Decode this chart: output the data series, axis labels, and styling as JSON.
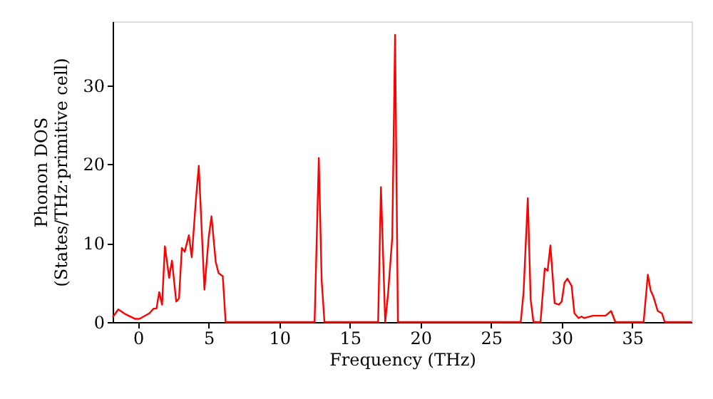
{
  "chart_data": {
    "type": "line",
    "xlabel": "Frequency (THz)",
    "ylabel": "Phonon DOS\n(States/THz·primitive cell)",
    "xlim": [
      -1.8,
      39.2
    ],
    "ylim": [
      0,
      38.1
    ],
    "xticks": [
      0,
      5,
      10,
      15,
      20,
      25,
      30,
      35
    ],
    "yticks": [
      0,
      10,
      20,
      30
    ],
    "grid": false,
    "marker": "none",
    "line_style": "solid",
    "series": [
      {
        "color": "#ff0000",
        "x": [
          -1.8,
          -1.4,
          -0.9,
          -0.2,
          0.1,
          0.8,
          1.1,
          1.3,
          1.5,
          1.7,
          1.9,
          2.2,
          2.4,
          2.7,
          2.9,
          3.1,
          3.3,
          3.6,
          3.8,
          4.1,
          4.3,
          4.7,
          5.0,
          5.2,
          5.5,
          5.7,
          6.0,
          6.2,
          12.5,
          12.8,
          13.0,
          13.2,
          17.0,
          17.2,
          17.5,
          17.7,
          18.0,
          18.2,
          18.4,
          27.1,
          27.3,
          27.6,
          27.8,
          28.0,
          28.5,
          28.8,
          29.0,
          29.2,
          29.5,
          29.8,
          30.0,
          30.2,
          30.4,
          30.7,
          30.9,
          31.2,
          31.4,
          31.6,
          32.2,
          33.1,
          33.5,
          33.8,
          35.8,
          36.1,
          36.3,
          36.5,
          36.8,
          37.1,
          37.3,
          39.2
        ],
        "values": [
          0.6,
          1.6,
          1.0,
          0.4,
          0.4,
          1.1,
          1.7,
          1.7,
          3.8,
          2.2,
          9.6,
          5.6,
          7.8,
          2.6,
          3.0,
          9.4,
          8.9,
          11.0,
          8.2,
          15.6,
          19.8,
          4.1,
          10.7,
          13.4,
          7.6,
          6.2,
          5.8,
          0,
          0,
          20.8,
          5.3,
          0,
          0,
          17.1,
          0,
          3.5,
          10.7,
          36.4,
          0,
          0,
          3.8,
          15.7,
          2.9,
          0,
          0,
          6.8,
          6.5,
          9.7,
          2.4,
          2.2,
          2.6,
          5.0,
          5.5,
          4.6,
          1.1,
          0.5,
          0.7,
          0.5,
          0.8,
          0.8,
          1.4,
          0,
          0,
          6.0,
          4.0,
          3.2,
          1.4,
          1.1,
          0,
          0
        ]
      }
    ]
  }
}
